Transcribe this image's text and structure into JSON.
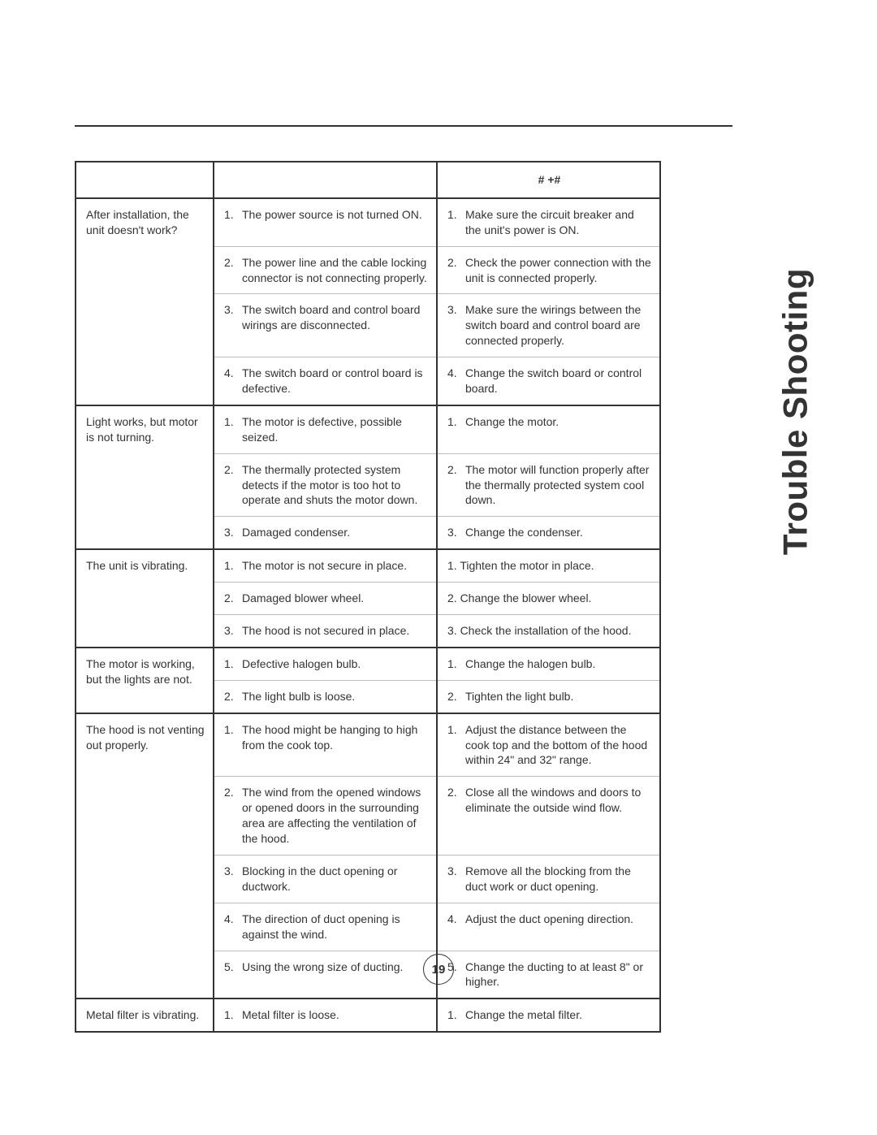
{
  "side_title": "Trouble Shooting",
  "page_number": "19",
  "colors": {
    "text": "#333333",
    "border_dark": "#333333",
    "border_light": "#bdbdbd",
    "background": "#ffffff"
  },
  "table": {
    "headers": {
      "problem": "",
      "cause": "",
      "solution": "# +#"
    },
    "groups": [
      {
        "problem": "After installation, the unit doesn't work?",
        "rows": [
          {
            "n": "1.",
            "cause": "The power source is not turned ON.",
            "solution": "Make sure the circuit breaker and the unit's power is ON."
          },
          {
            "n": "2.",
            "cause": "The power line and the cable locking connector is not connecting properly.",
            "solution": "Check the power connection with the unit is connected properly."
          },
          {
            "n": "3.",
            "cause": "The switch board and control board wirings are disconnected.",
            "solution": "Make sure the wirings between the switch board and control board are connected properly."
          },
          {
            "n": "4.",
            "cause": "The switch board or control board is defective.",
            "solution": "Change the switch board or control board."
          }
        ]
      },
      {
        "problem": "Light works, but motor is not turning.",
        "rows": [
          {
            "n": "1.",
            "cause": "The motor is defective, possible seized.",
            "solution": "Change the motor."
          },
          {
            "n": "2.",
            "cause": "The thermally protected system detects if the motor is too hot to operate and shuts the motor down.",
            "solution": "The motor will function properly after the thermally protected system cool down."
          },
          {
            "n": "3.",
            "cause": "Damaged condenser.",
            "solution": "Change the condenser."
          }
        ]
      },
      {
        "problem": "The unit is vibrating.",
        "rows": [
          {
            "n": "1.",
            "cause": "The motor is not secure in place.",
            "solution": "Tighten the motor in place.",
            "sol_num_style": "inline"
          },
          {
            "n": "2.",
            "cause": "Damaged blower wheel.",
            "solution": "Change the blower wheel.",
            "sol_num_style": "inline"
          },
          {
            "n": "3.",
            "cause": "The hood is not secured in place.",
            "solution": "Check the installation of the hood.",
            "sol_num_style": "inline"
          }
        ]
      },
      {
        "problem": "The motor is working, but the lights are not.",
        "rows": [
          {
            "n": "1.",
            "cause": "Defective halogen bulb.",
            "solution": "Change the halogen bulb."
          },
          {
            "n": "2.",
            "cause": "The light bulb is loose.",
            "solution": "Tighten the light bulb."
          }
        ]
      },
      {
        "problem": "The hood is not venting out properly.",
        "rows": [
          {
            "n": "1.",
            "cause": "The hood might be hanging to high from the cook top.",
            "solution": "Adjust the distance between the cook top and the bottom of the hood within 24\" and 32\" range."
          },
          {
            "n": "2.",
            "cause": "The wind from the opened windows or opened doors in the surrounding area are affecting the ventilation of the hood.",
            "solution": "Close all the windows and doors to eliminate the outside wind flow."
          },
          {
            "n": "3.",
            "cause": "Blocking in the duct opening or ductwork.",
            "solution": "Remove all the blocking from the duct work or duct opening."
          },
          {
            "n": "4.",
            "cause": "The direction of duct opening is against the wind.",
            "solution": "Adjust the duct opening direction."
          },
          {
            "n": "5.",
            "cause": "Using the wrong size of ducting.",
            "solution": "Change the ducting to at least 8\" or higher."
          }
        ]
      },
      {
        "problem": "Metal filter is vibrating.",
        "rows": [
          {
            "n": "1.",
            "cause": "Metal filter is loose.",
            "solution": "Change the metal filter."
          }
        ]
      }
    ]
  }
}
